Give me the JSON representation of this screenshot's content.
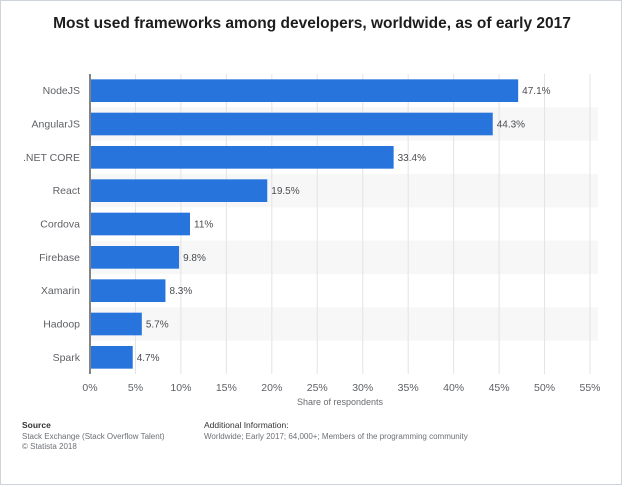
{
  "chart_data": {
    "type": "bar",
    "orientation": "horizontal",
    "title": "Most used frameworks among developers, worldwide, as of early 2017",
    "categories": [
      "NodeJS",
      "AngularJS",
      ".NET CORE",
      "React",
      "Cordova",
      "Firebase",
      "Xamarin",
      "Hadoop",
      "Spark"
    ],
    "values": [
      47.1,
      44.3,
      33.4,
      19.5,
      11,
      9.8,
      8.3,
      5.7,
      4.7
    ],
    "value_labels": [
      "47.1%",
      "44.3%",
      "33.4%",
      "19.5%",
      "11%",
      "9.8%",
      "8.3%",
      "5.7%",
      "4.7%"
    ],
    "xlabel": "Share of respondents",
    "ylabel": "",
    "xlim": [
      0,
      55
    ],
    "xticks": [
      0,
      5,
      10,
      15,
      20,
      25,
      30,
      35,
      40,
      45,
      50,
      55
    ],
    "xtick_labels": [
      "0%",
      "5%",
      "10%",
      "15%",
      "20%",
      "25%",
      "30%",
      "35%",
      "40%",
      "45%",
      "50%",
      "55%"
    ],
    "grid": true,
    "legend": "none",
    "colors": {
      "bar": "#2874dd",
      "grid": "#e3e3e3",
      "band": "#f7f7f7",
      "axis": "#333333"
    }
  },
  "footer": {
    "source_heading": "Source",
    "source_line1": "Stack Exchange (Stack Overflow Talent)",
    "source_line2": "© Statista 2018",
    "info_heading": "Additional Information:",
    "info_text": "Worldwide; Early 2017; 64,000+; Members of the programming community"
  }
}
